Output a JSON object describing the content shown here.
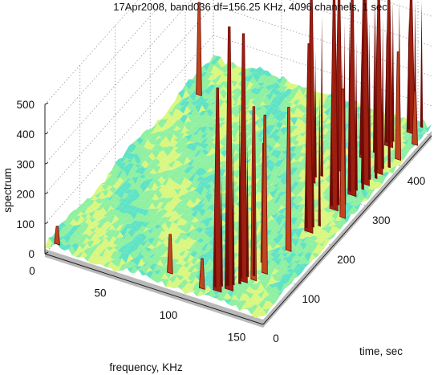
{
  "chart_data": {
    "type": "surface3d",
    "title": "17Apr2008, band036  df=156.25 KHz, 4096 channels, 1 sec",
    "xlabel": "frequency, KHz",
    "ylabel": "time, sec",
    "zlabel": "spectrum",
    "xlim": [
      0,
      160
    ],
    "ylim": [
      0,
      480
    ],
    "zlim": [
      0,
      500
    ],
    "x_ticks": [
      0,
      50,
      100,
      150
    ],
    "y_ticks": [
      0,
      100,
      200,
      300,
      400
    ],
    "z_ticks": [
      0,
      100,
      200,
      300,
      400,
      500
    ],
    "grid": true,
    "baseline_level": 20,
    "colors": {
      "floor_low": "#d9f77f",
      "floor_mid": "#8ff0a0",
      "floor_high": "#5fe3c4",
      "peak_dark": "#6e0a06",
      "peak_mid": "#9c1f10",
      "peak_light": "#c0461f",
      "edge_gray": "#8a8a8a"
    },
    "peaks": [
      {
        "frequency": 84,
        "time": 30,
        "value": 150
      },
      {
        "frequency": 110,
        "time": 20,
        "value": 120
      },
      {
        "frequency": 120,
        "time": 25,
        "value": 700
      },
      {
        "frequency": 126,
        "time": 35,
        "value": 900
      },
      {
        "frequency": 130,
        "time": 60,
        "value": 850
      },
      {
        "frequency": 132,
        "time": 110,
        "value": 420
      },
      {
        "frequency": 135,
        "time": 70,
        "value": 600
      },
      {
        "frequency": 138,
        "time": 90,
        "value": 550
      },
      {
        "frequency": 140,
        "time": 150,
        "value": 500
      },
      {
        "frequency": 142,
        "time": 200,
        "value": 650
      },
      {
        "frequency": 145,
        "time": 260,
        "value": 900
      },
      {
        "frequency": 148,
        "time": 300,
        "value": 950
      },
      {
        "frequency": 150,
        "time": 330,
        "value": 1000
      },
      {
        "frequency": 152,
        "time": 360,
        "value": 950
      },
      {
        "frequency": 154,
        "time": 250,
        "value": 450
      },
      {
        "frequency": 156,
        "time": 400,
        "value": 380
      },
      {
        "frequency": 158,
        "time": 440,
        "value": 200
      },
      {
        "frequency": 10,
        "time": 400,
        "value": 330
      },
      {
        "frequency": 5,
        "time": 15,
        "value": 80
      },
      {
        "frequency": 118,
        "time": 300,
        "value": 800
      },
      {
        "frequency": 128,
        "time": 340,
        "value": 700
      },
      {
        "frequency": 136,
        "time": 380,
        "value": 900
      },
      {
        "frequency": 144,
        "time": 420,
        "value": 1000
      },
      {
        "frequency": 150,
        "time": 460,
        "value": 1000
      }
    ]
  }
}
